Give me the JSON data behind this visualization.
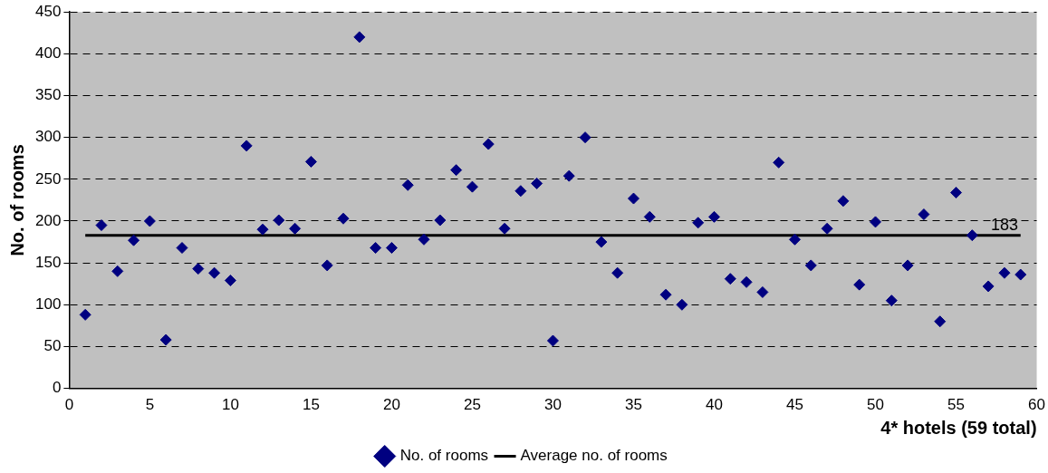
{
  "chart_data": {
    "type": "scatter",
    "xlabel": "4* hotels (59 total)",
    "ylabel": "No. of rooms",
    "x": [
      1,
      2,
      3,
      4,
      5,
      6,
      7,
      8,
      9,
      10,
      11,
      12,
      13,
      14,
      15,
      16,
      17,
      18,
      19,
      20,
      21,
      22,
      23,
      24,
      25,
      26,
      27,
      28,
      29,
      30,
      31,
      32,
      33,
      34,
      35,
      36,
      37,
      38,
      39,
      40,
      41,
      42,
      43,
      44,
      45,
      46,
      47,
      48,
      49,
      50,
      51,
      52,
      53,
      54,
      55,
      56,
      57,
      58,
      59
    ],
    "series": [
      {
        "name": "No. of rooms",
        "color": "#000080",
        "marker": "diamond",
        "values": [
          88,
          195,
          140,
          177,
          200,
          58,
          168,
          143,
          138,
          129,
          290,
          190,
          201,
          191,
          271,
          147,
          203,
          420,
          168,
          168,
          243,
          178,
          201,
          261,
          241,
          292,
          191,
          236,
          245,
          57,
          254,
          300,
          175,
          138,
          227,
          205,
          112,
          100,
          198,
          205,
          131,
          127,
          115,
          270,
          178,
          147,
          191,
          224,
          124,
          199,
          105,
          147,
          208,
          80,
          234,
          183,
          122,
          138,
          136
        ]
      },
      {
        "name": "Average no. of rooms",
        "type": "line",
        "color": "#000000",
        "marker": "none",
        "x": [
          1,
          59
        ],
        "values": [
          183,
          183
        ]
      }
    ],
    "annotations": [
      {
        "text": "183",
        "x": 58,
        "y": 183
      }
    ],
    "xlim": [
      0,
      60
    ],
    "xticks": [
      0,
      5,
      10,
      15,
      20,
      25,
      30,
      35,
      40,
      45,
      50,
      55,
      60
    ],
    "ylim": [
      0,
      450
    ],
    "yticks": [
      0,
      50,
      100,
      150,
      200,
      250,
      300,
      350,
      400,
      450
    ],
    "grid": "y",
    "legend": "bottom"
  }
}
